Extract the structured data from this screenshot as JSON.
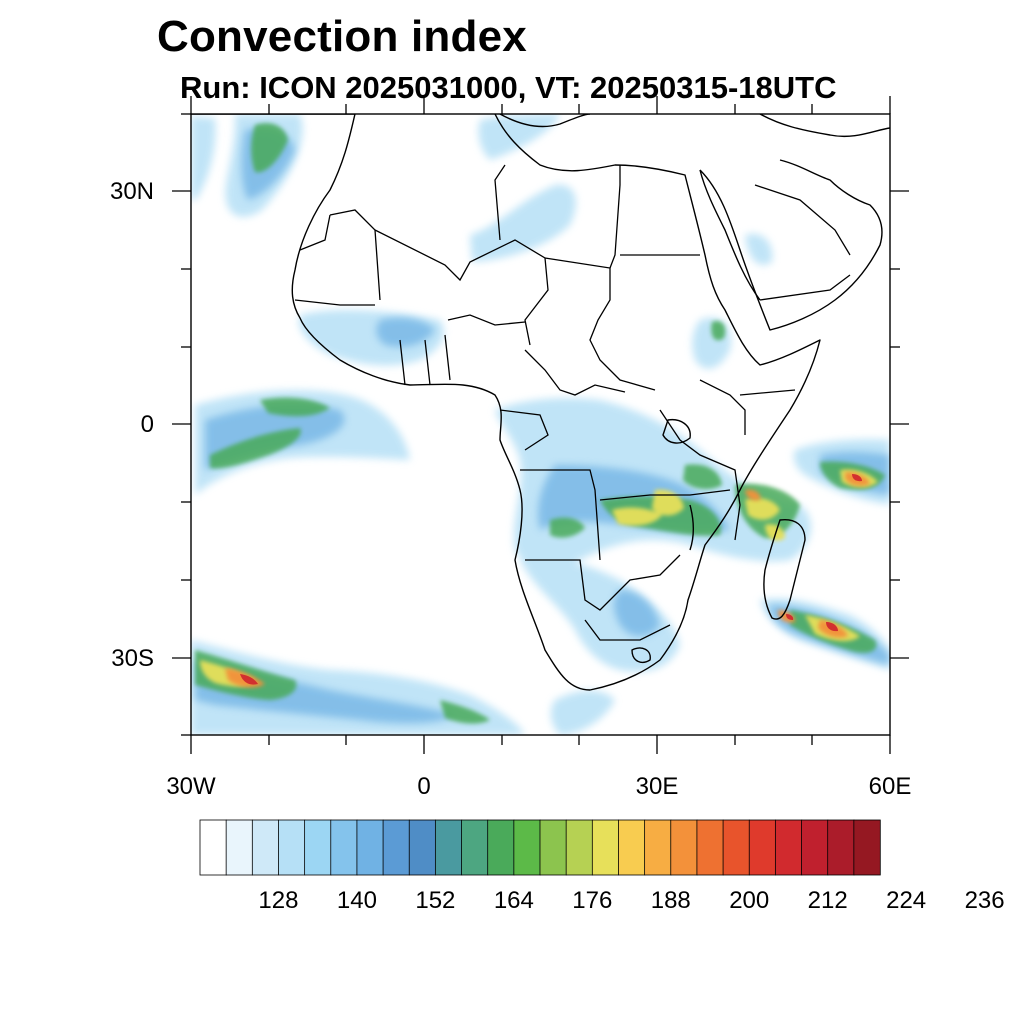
{
  "title": "Convection index",
  "subtitle": "Run: ICON 2025031000,  VT: 20250315-18UTC",
  "lat_labels": [
    "30N",
    "0",
    "30S"
  ],
  "lon_labels": [
    "30W",
    "0",
    "30E",
    "60E"
  ],
  "colorbar": {
    "labels": [
      "128",
      "140",
      "152",
      "164",
      "176",
      "188",
      "200",
      "212",
      "224",
      "236"
    ],
    "colors": [
      "#ffffff",
      "#e9f5fc",
      "#cfe9f8",
      "#b6e0f6",
      "#9cd6f3",
      "#84c3ec",
      "#70b2e4",
      "#5b9bd5",
      "#4f8dc6",
      "#4a9aa0",
      "#4da681",
      "#4aaa5a",
      "#5cba48",
      "#8cc44e",
      "#b6d153",
      "#e7e05a",
      "#f8cc50",
      "#f7ad43",
      "#f3913a",
      "#ee7131",
      "#e8542c",
      "#df3a2c",
      "#d12a2e",
      "#c0202e",
      "#ab1c2a",
      "#951822"
    ]
  },
  "domain": {
    "lon_min": -30,
    "lon_max": 60,
    "lat_min": -40,
    "lat_max": 40
  }
}
